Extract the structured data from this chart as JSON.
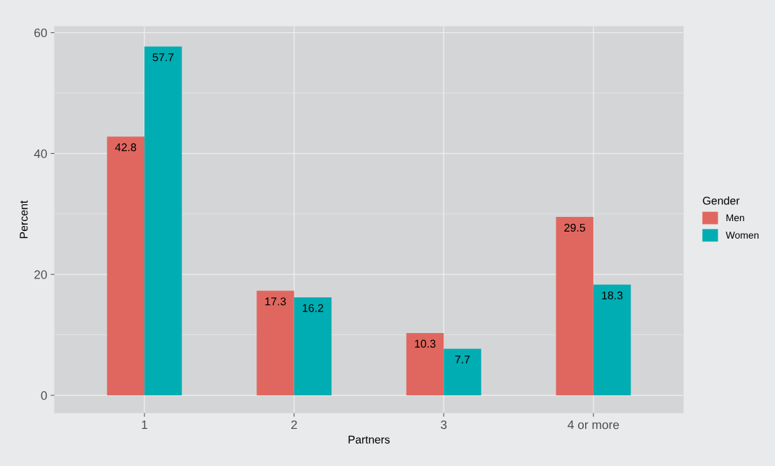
{
  "chart_data": {
    "type": "bar",
    "xlabel": "Partners",
    "ylabel": "Percent",
    "legend_title": "Gender",
    "categories": [
      "1",
      "2",
      "3",
      "4 or more"
    ],
    "series": [
      {
        "name": "Men",
        "color": "#e0675f",
        "values": [
          42.8,
          17.3,
          10.3,
          29.5
        ]
      },
      {
        "name": "Women",
        "color": "#00adb2",
        "values": [
          57.7,
          16.2,
          7.7,
          18.3
        ]
      }
    ],
    "ylim": [
      -2.9,
      61
    ],
    "yticks": [
      0,
      20,
      40,
      60
    ],
    "grid": true,
    "legend": "right",
    "data_labels": true
  }
}
